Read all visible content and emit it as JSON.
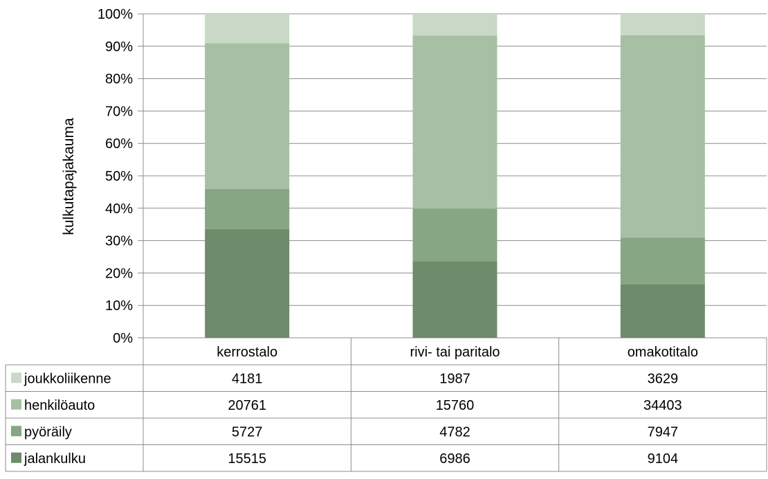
{
  "chart_data": {
    "type": "bar",
    "stacked": "percent",
    "ylabel": "kulkutapajakauma",
    "xlabel": "",
    "ylim": [
      0,
      100
    ],
    "yticks": [
      "0%",
      "10%",
      "20%",
      "30%",
      "40%",
      "50%",
      "60%",
      "70%",
      "80%",
      "90%",
      "100%"
    ],
    "categories": [
      "kerrostalo",
      "rivi- tai paritalo",
      "omakotitalo"
    ],
    "series": [
      {
        "name": "joukkoliikenne",
        "values": [
          4181,
          1987,
          3629
        ],
        "color": "#c9d8c7"
      },
      {
        "name": "henkilöauto",
        "values": [
          20761,
          15760,
          34403
        ],
        "color": "#a7c0a5"
      },
      {
        "name": "pyöräily",
        "values": [
          5727,
          4782,
          7947
        ],
        "color": "#87a684"
      },
      {
        "name": "jalankulku",
        "values": [
          15515,
          6986,
          9104
        ],
        "color": "#6e8b6b"
      }
    ],
    "legend": "data-table",
    "grid": true
  }
}
